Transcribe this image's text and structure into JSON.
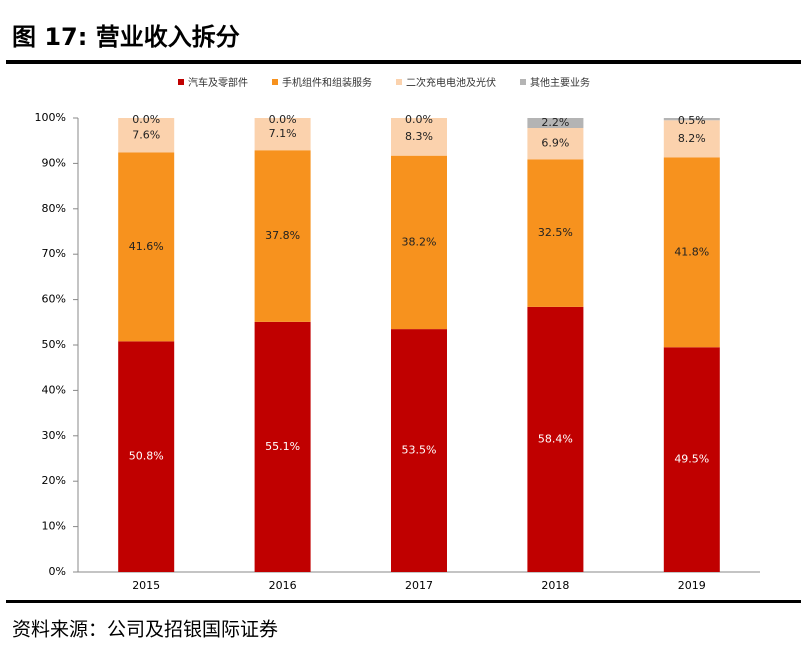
{
  "chart_data": {
    "type": "stacked-bar",
    "title": "图 17: 营业收入拆分",
    "source": "资料来源：公司及招银国际证券",
    "categories": [
      "2015",
      "2016",
      "2017",
      "2018",
      "2019"
    ],
    "series": [
      {
        "name": "汽车及零部件",
        "color": "#c00000",
        "values": [
          50.8,
          55.1,
          53.5,
          58.4,
          49.5
        ],
        "value_labels": [
          "50.8%",
          "55.1%",
          "53.5%",
          "58.4%",
          "49.5%"
        ]
      },
      {
        "name": "手机组件和组装服务",
        "color": "#f7921e",
        "values": [
          41.6,
          37.8,
          38.2,
          32.5,
          41.8
        ],
        "value_labels": [
          "41.6%",
          "37.8%",
          "38.2%",
          "32.5%",
          "41.8%"
        ]
      },
      {
        "name": "二次充电电池及光伏",
        "color": "#fbd2ad",
        "values": [
          7.6,
          7.1,
          8.3,
          6.9,
          8.2
        ],
        "value_labels": [
          "7.6%",
          "7.1%",
          "8.3%",
          "6.9%",
          "8.2%"
        ]
      },
      {
        "name": "其他主要业务",
        "color": "#b4b4b4",
        "values": [
          0.0,
          0.0,
          0.0,
          2.2,
          0.5
        ],
        "value_labels": [
          "0.0%",
          "0.0%",
          "0.0%",
          "2.2%",
          "0.5%"
        ]
      }
    ],
    "ylim": [
      0,
      100
    ],
    "yticks": [
      {
        "value": 0,
        "label": "0%"
      },
      {
        "value": 10,
        "label": "10%"
      },
      {
        "value": 20,
        "label": "20%"
      },
      {
        "value": 30,
        "label": "30%"
      },
      {
        "value": 40,
        "label": "40%"
      },
      {
        "value": 50,
        "label": "50%"
      },
      {
        "value": 60,
        "label": "60%"
      },
      {
        "value": 70,
        "label": "70%"
      },
      {
        "value": 80,
        "label": "80%"
      },
      {
        "value": 90,
        "label": "90%"
      },
      {
        "value": 100,
        "label": "100%"
      }
    ],
    "legend": "top"
  }
}
